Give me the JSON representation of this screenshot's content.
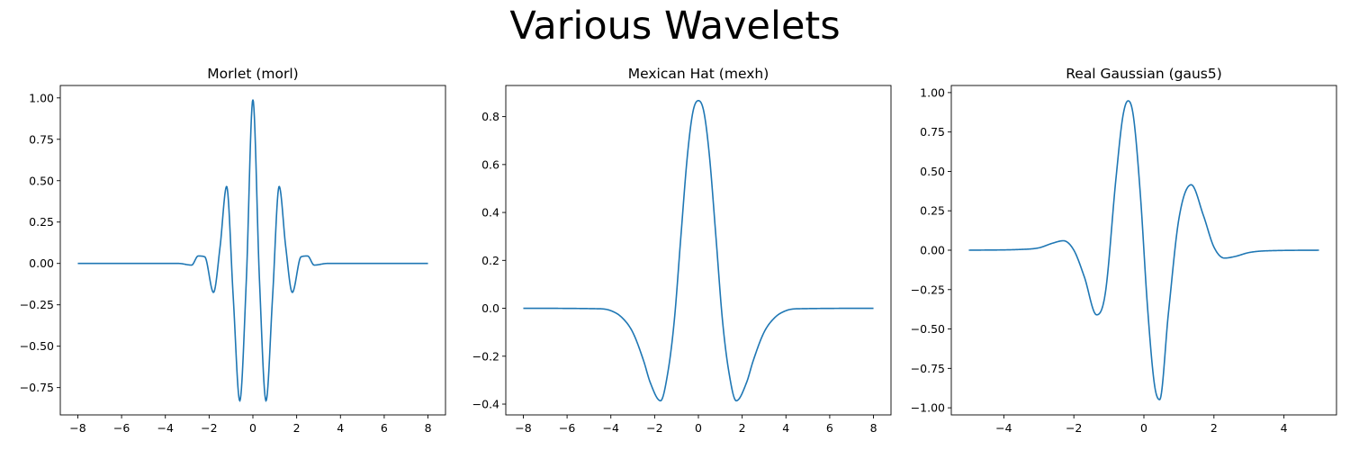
{
  "figure": {
    "title": "Various Wavelets"
  },
  "chart_data": [
    {
      "type": "line",
      "title": "Morlet (morl)",
      "xlim": [
        -8.8,
        8.8
      ],
      "ylim": [
        -0.915,
        1.075
      ],
      "xticks": [
        -8,
        -6,
        -4,
        -2,
        0,
        2,
        4,
        6,
        8
      ],
      "xtick_labels": [
        "−8",
        "−6",
        "−4",
        "−2",
        "0",
        "2",
        "4",
        "6",
        "8"
      ],
      "yticks": [
        1.0,
        0.75,
        0.5,
        0.25,
        0.0,
        -0.25,
        -0.5,
        -0.75
      ],
      "ytick_labels": [
        "1.00",
        "0.75",
        "0.50",
        "0.25",
        "0.00",
        "−0.25",
        "−0.50",
        "−0.75"
      ],
      "color": "#1f77b4",
      "grid": false,
      "series": [
        {
          "x": [
            -8,
            -4,
            -3.4,
            -2.8,
            -2.5,
            -2.2,
            -1.8,
            -1.5,
            -1.2,
            -0.9,
            -0.6,
            -0.3,
            0,
            0.3,
            0.6,
            0.9,
            1.2,
            1.5,
            1.8,
            2.2,
            2.5,
            2.8,
            3.4,
            4,
            8
          ],
          "y": [
            0,
            0,
            0.0,
            -0.01,
            0.045,
            0.04,
            -0.175,
            0.1,
            0.465,
            -0.2,
            -0.83,
            -0.1,
            0.99,
            -0.1,
            -0.83,
            -0.2,
            0.465,
            0.1,
            -0.175,
            0.04,
            0.045,
            -0.01,
            0.0,
            0,
            0
          ]
        }
      ]
    },
    {
      "type": "line",
      "title": "Mexican Hat (mexh)",
      "xlim": [
        -8.8,
        8.8
      ],
      "ylim": [
        -0.445,
        0.93
      ],
      "xticks": [
        -8,
        -6,
        -4,
        -2,
        0,
        2,
        4,
        6,
        8
      ],
      "xtick_labels": [
        "−8",
        "−6",
        "−4",
        "−2",
        "0",
        "2",
        "4",
        "6",
        "8"
      ],
      "yticks": [
        0.8,
        0.6,
        0.4,
        0.2,
        0.0,
        -0.2,
        -0.4
      ],
      "ytick_labels": [
        "0.8",
        "0.6",
        "0.4",
        "0.2",
        "0.0",
        "−0.2",
        "−0.4"
      ],
      "color": "#1f77b4",
      "grid": false,
      "series": [
        {
          "x": [
            -8,
            -4.5,
            -4,
            -3.5,
            -3,
            -2.5,
            -2.2,
            -1.73,
            -1.4,
            -1.1,
            -0.8,
            -0.5,
            -0.25,
            0,
            0.25,
            0.5,
            0.8,
            1.1,
            1.4,
            1.73,
            2.2,
            2.5,
            3,
            3.5,
            4,
            4.5,
            8
          ],
          "y": [
            0,
            -0.002,
            -0.01,
            -0.038,
            -0.1,
            -0.22,
            -0.31,
            -0.386,
            -0.27,
            -0.05,
            0.3,
            0.64,
            0.82,
            0.867,
            0.82,
            0.64,
            0.3,
            -0.05,
            -0.27,
            -0.386,
            -0.31,
            -0.22,
            -0.1,
            -0.038,
            -0.01,
            -0.002,
            0
          ]
        }
      ]
    },
    {
      "type": "line",
      "title": "Real Gaussian (gaus5)",
      "xlim": [
        -5.5,
        5.5
      ],
      "ylim": [
        -1.045,
        1.045
      ],
      "xticks": [
        -4,
        -2,
        0,
        2,
        4
      ],
      "xtick_labels": [
        "−4",
        "−2",
        "0",
        "2",
        "4"
      ],
      "yticks": [
        1.0,
        0.75,
        0.5,
        0.25,
        0.0,
        -0.25,
        -0.5,
        -0.75,
        -1.0
      ],
      "ytick_labels": [
        "1.00",
        "0.75",
        "0.50",
        "0.25",
        "0.00",
        "−0.25",
        "−0.50",
        "−0.75",
        "−1.00"
      ],
      "color": "#1f77b4",
      "grid": false,
      "series": [
        {
          "x": [
            -5,
            -3.5,
            -3,
            -2.6,
            -2.3,
            -2,
            -1.7,
            -1.35,
            -1.1,
            -0.8,
            -0.6,
            -0.45,
            -0.3,
            -0.1,
            0.1,
            0.3,
            0.45,
            0.7,
            1.0,
            1.35,
            1.7,
            2.0,
            2.3,
            2.6,
            3,
            3.5,
            5
          ],
          "y": [
            0,
            0.005,
            0.015,
            0.045,
            0.06,
            0.0,
            -0.17,
            -0.41,
            -0.27,
            0.45,
            0.85,
            0.948,
            0.85,
            0.35,
            -0.35,
            -0.85,
            -0.948,
            -0.4,
            0.2,
            0.415,
            0.22,
            0.02,
            -0.05,
            -0.04,
            -0.015,
            -0.004,
            0
          ]
        }
      ]
    }
  ]
}
